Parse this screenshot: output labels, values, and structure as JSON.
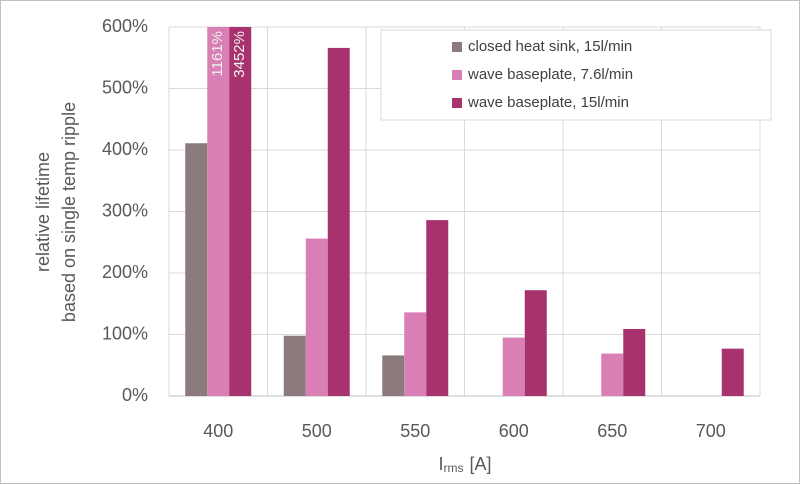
{
  "chart_data": {
    "type": "bar",
    "categories": [
      "400",
      "500",
      "550",
      "600",
      "650",
      "700"
    ],
    "series": [
      {
        "name": "closed heat sink, 15l/min",
        "color": "#8c7b7d",
        "values": [
          411,
          98,
          66,
          null,
          null,
          null
        ]
      },
      {
        "name": "wave baseplate, 7.6l/min",
        "color": "#d97fb5",
        "values": [
          1161,
          256,
          136,
          95,
          69,
          null
        ],
        "value_labels": [
          "1161%",
          null,
          null,
          null,
          null,
          null
        ]
      },
      {
        "name": "wave baseplate, 15l/min",
        "color": "#a8326e",
        "values": [
          3452,
          566,
          286,
          172,
          109,
          77
        ],
        "value_labels": [
          "3452%",
          null,
          null,
          null,
          null,
          null
        ]
      }
    ],
    "ylim": [
      0,
      600
    ],
    "yticks": [
      {
        "value": 0,
        "label": "0%"
      },
      {
        "value": 100,
        "label": "100%"
      },
      {
        "value": 200,
        "label": "200%"
      },
      {
        "value": 300,
        "label": "300%"
      },
      {
        "value": 400,
        "label": "400%"
      },
      {
        "value": 500,
        "label": "500%"
      },
      {
        "value": 600,
        "label": "600%"
      }
    ],
    "y_label": [
      "relative lifetime",
      "based on single temp ripple"
    ],
    "x_label": {
      "main": "I",
      "sub": "rms",
      "unit": "[A]"
    },
    "grid": true,
    "legend": "upper right"
  }
}
